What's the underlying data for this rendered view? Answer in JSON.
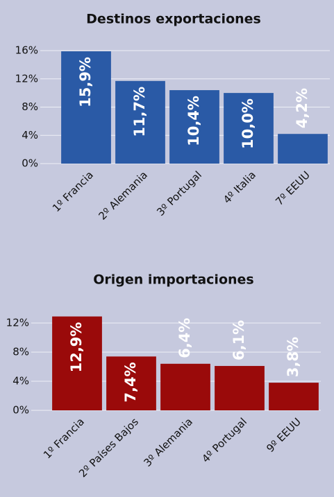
{
  "chart_data": [
    {
      "type": "bar",
      "title": "Destinos exportaciones",
      "categories": [
        "1º Francia",
        "2º Alemania",
        "3º Portugal",
        "4º Italia",
        "7º EEUU"
      ],
      "values": [
        15.9,
        11.7,
        10.4,
        10.0,
        4.2
      ],
      "value_labels": [
        "15,9%",
        "11,7%",
        "10,4%",
        "10,0%",
        "4,2%"
      ],
      "color": "#2a5aa6",
      "ylim": [
        0,
        16
      ],
      "yticks": [
        {
          "value": 0,
          "label": "0%"
        },
        {
          "value": 4,
          "label": "4%"
        },
        {
          "value": 8,
          "label": "8%"
        },
        {
          "value": 12,
          "label": "12%"
        },
        {
          "value": 16,
          "label": "16%"
        }
      ],
      "grid": true
    },
    {
      "type": "bar",
      "title": "Origen importaciones",
      "categories": [
        "1º Francia",
        "2º Países Bajos",
        "3º Alemania",
        "4º Portugal",
        "9º EEUU"
      ],
      "values": [
        12.9,
        7.4,
        6.4,
        6.1,
        3.8
      ],
      "value_labels": [
        "12,9%",
        "7,4%",
        "6,4%",
        "6,1%",
        "3,8%"
      ],
      "color": "#9a0a0a",
      "ylim": [
        0,
        12
      ],
      "yticks": [
        {
          "value": 0,
          "label": "0%"
        },
        {
          "value": 4,
          "label": "4%"
        },
        {
          "value": 8,
          "label": "8%"
        },
        {
          "value": 12,
          "label": "12%"
        }
      ],
      "grid": true
    }
  ]
}
